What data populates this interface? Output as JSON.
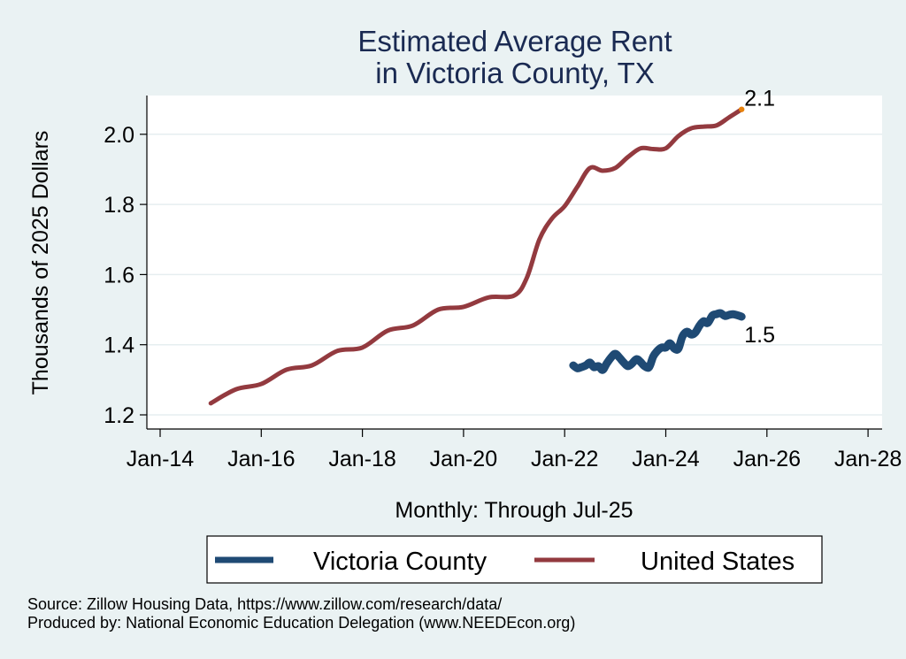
{
  "chart_data": {
    "type": "line",
    "title": [
      "Estimated Average Rent",
      "in Victoria County, TX"
    ],
    "xlabel": "Monthly: Through Jul-25",
    "ylabel": "Thousands of 2025 Dollars",
    "x_ticks": [
      "Jan-14",
      "Jan-16",
      "Jan-18",
      "Jan-20",
      "Jan-22",
      "Jan-24",
      "Jan-26",
      "Jan-28"
    ],
    "x_tick_years": [
      2014,
      2016,
      2018,
      2020,
      2022,
      2024,
      2026,
      2028
    ],
    "xlim": [
      2013.72,
      2028.28
    ],
    "y_ticks": [
      "1.2",
      "1.4",
      "1.6",
      "1.8",
      "2.0"
    ],
    "y_tick_values": [
      1.2,
      1.4,
      1.6,
      1.8,
      2.0
    ],
    "ylim": [
      1.16,
      2.11
    ],
    "grid": true,
    "legend_position": "bottom",
    "series": [
      {
        "name": "Victoria County",
        "color": "#1f4a74",
        "end_label": "1.5",
        "x": [
          2022.17,
          2022.25,
          2022.33,
          2022.42,
          2022.5,
          2022.58,
          2022.67,
          2022.75,
          2022.83,
          2022.92,
          2023.0,
          2023.08,
          2023.17,
          2023.25,
          2023.33,
          2023.42,
          2023.5,
          2023.58,
          2023.67,
          2023.75,
          2023.83,
          2023.92,
          2024.0,
          2024.08,
          2024.17,
          2024.25,
          2024.33,
          2024.42,
          2024.5,
          2024.58,
          2024.67,
          2024.75,
          2024.83,
          2024.92,
          2025.0,
          2025.08,
          2025.17,
          2025.25,
          2025.33,
          2025.42,
          2025.5
        ],
        "values": [
          1.341,
          1.333,
          1.336,
          1.341,
          1.349,
          1.336,
          1.339,
          1.328,
          1.346,
          1.364,
          1.374,
          1.364,
          1.349,
          1.339,
          1.346,
          1.359,
          1.351,
          1.339,
          1.336,
          1.366,
          1.382,
          1.392,
          1.392,
          1.404,
          1.389,
          1.389,
          1.424,
          1.437,
          1.429,
          1.434,
          1.455,
          1.467,
          1.462,
          1.483,
          1.487,
          1.49,
          1.482,
          1.485,
          1.487,
          1.484,
          1.48
        ]
      },
      {
        "name": "United States",
        "color": "#933a3f",
        "end_label": "2.1",
        "end_marker_color": "#e8820c",
        "x": [
          2015.0,
          2015.5,
          2016.0,
          2016.5,
          2017.0,
          2017.5,
          2018.0,
          2018.5,
          2019.0,
          2019.5,
          2020.0,
          2020.5,
          2021.0,
          2021.25,
          2021.5,
          2021.75,
          2022.0,
          2022.25,
          2022.5,
          2022.75,
          2023.0,
          2023.25,
          2023.5,
          2023.75,
          2024.0,
          2024.25,
          2024.5,
          2024.75,
          2025.0,
          2025.25,
          2025.5
        ],
        "values": [
          1.233,
          1.273,
          1.288,
          1.329,
          1.341,
          1.382,
          1.392,
          1.44,
          1.455,
          1.5,
          1.508,
          1.535,
          1.54,
          1.59,
          1.7,
          1.76,
          1.795,
          1.85,
          1.904,
          1.896,
          1.904,
          1.935,
          1.96,
          1.958,
          1.96,
          1.995,
          2.017,
          2.022,
          2.025,
          2.048,
          2.071
        ]
      }
    ]
  },
  "legend": {
    "items": [
      "Victoria County",
      "United States"
    ]
  },
  "notes": {
    "source": "Source: Zillow Housing Data, https://www.zillow.com/research/data/",
    "produced_by": "Produced by: National Economic Education Delegation (www.NEEDEcon.org)"
  }
}
